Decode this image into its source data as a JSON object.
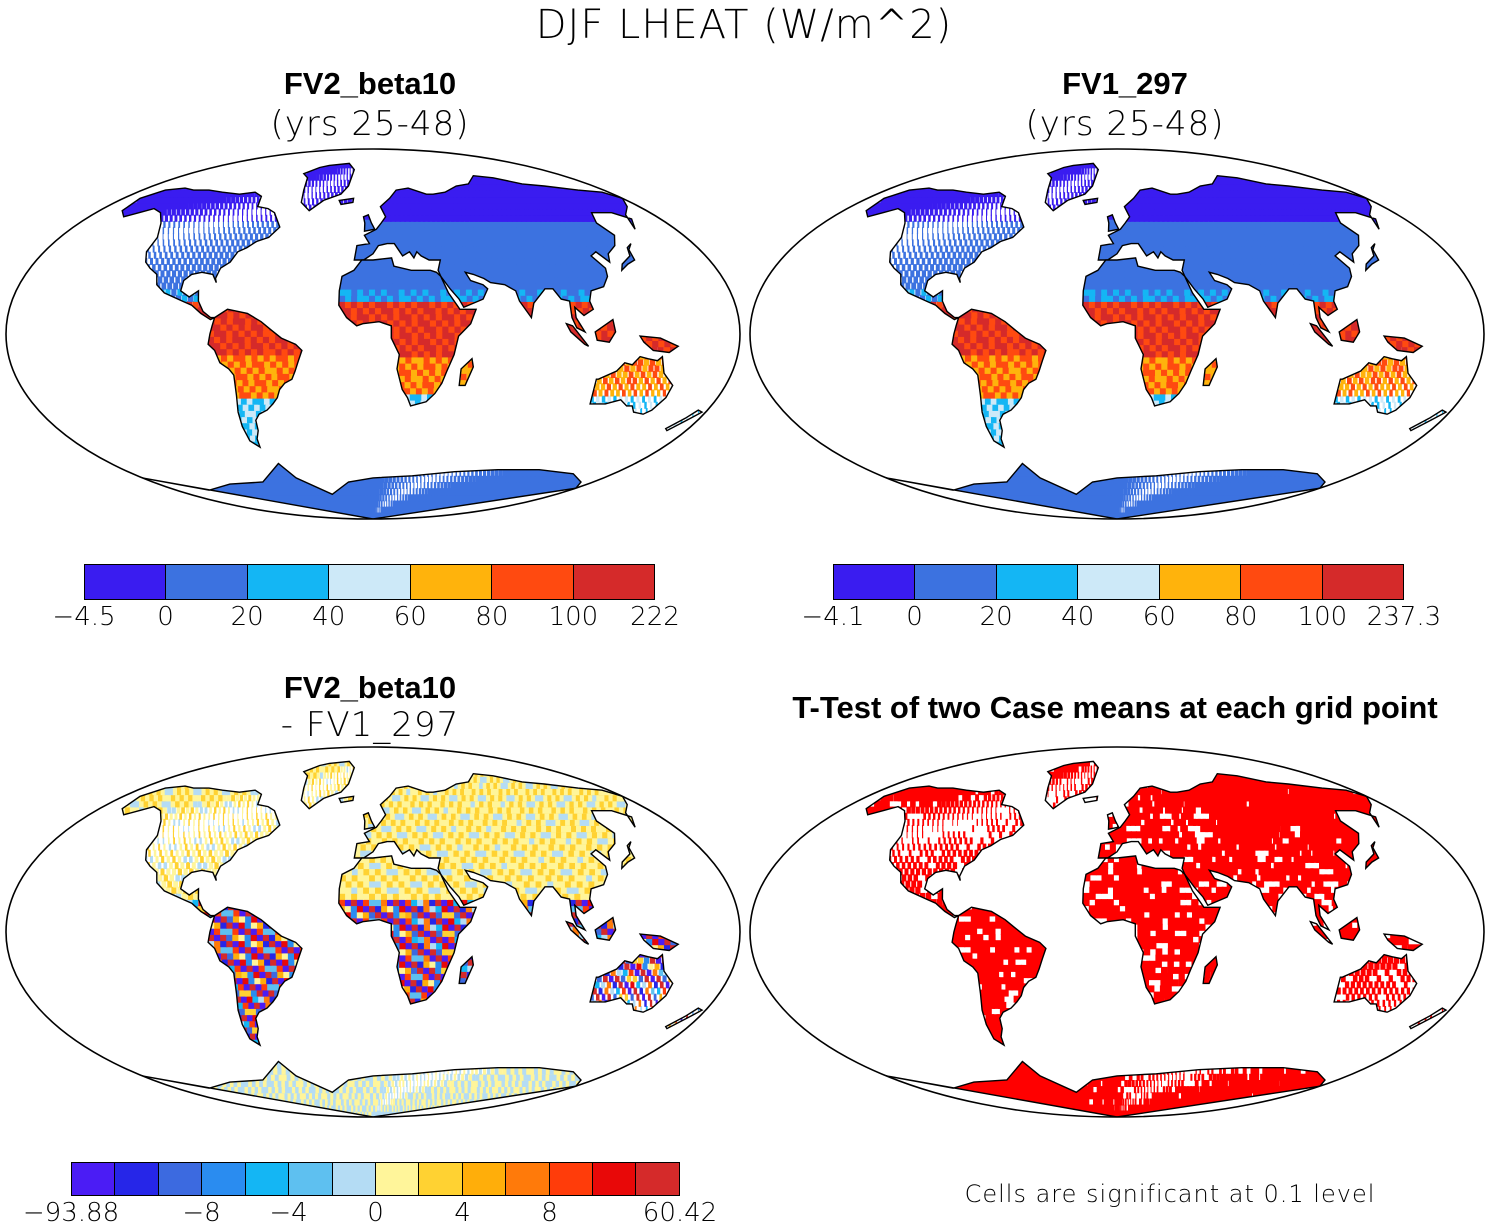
{
  "title": "DJF LHEAT (W/m^2)",
  "panels": {
    "top_left": {
      "title": "FV2_beta10",
      "subtitle": "(yrs 25-48)"
    },
    "top_right": {
      "title": "FV1_297",
      "subtitle": "(yrs 25-48)"
    },
    "bottom_left": {
      "title": "FV2_beta10",
      "subtitle": "- FV1_297"
    },
    "bottom_right": {
      "title": "T-Test of two Case means at each grid point",
      "footnote": "Cells are significant at 0.1 level"
    }
  },
  "colorbars": {
    "top_left": {
      "colors": [
        "#3a1cf0",
        "#3c72e0",
        "#14b6f4",
        "#cde9f8",
        "#ffb30c",
        "#ff4a10",
        "#d52a2a"
      ],
      "labels": [
        "-4.5",
        "0",
        "20",
        "40",
        "60",
        "80",
        "100",
        "222"
      ]
    },
    "top_right": {
      "colors": [
        "#3a1cf0",
        "#3c72e0",
        "#14b6f4",
        "#cde9f8",
        "#ffb30c",
        "#ff4a10",
        "#d52a2a"
      ],
      "labels": [
        "-4.1",
        "0",
        "20",
        "40",
        "60",
        "80",
        "100",
        "237.3"
      ]
    },
    "bottom_left": {
      "colors": [
        "#4b1cf5",
        "#2626e8",
        "#3c6ae0",
        "#2a8cf0",
        "#14b6f4",
        "#5ec0f0",
        "#b4dcf4",
        "#fff59a",
        "#ffd232",
        "#ffae0a",
        "#ff7a0a",
        "#ff3c0a",
        "#e80808",
        "#d52a2a"
      ],
      "labels": [
        "-93.88",
        "-8",
        "-4",
        "0",
        "4",
        "8",
        "60.42"
      ]
    }
  },
  "maps": {
    "ocean": "#ffffff",
    "outline": "#000000",
    "ttest_color": "#ff0000"
  }
}
